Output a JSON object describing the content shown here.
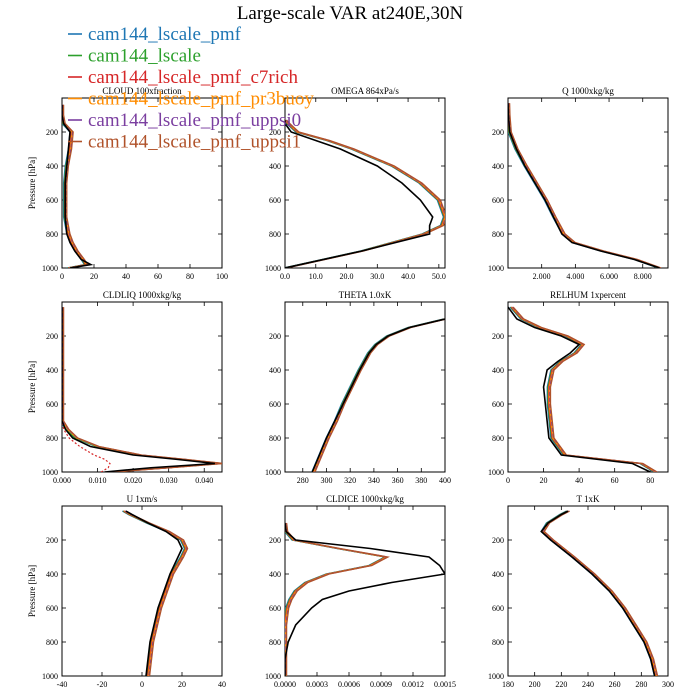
{
  "figure": {
    "title": "Large-scale VAR at240E,30N"
  },
  "legend": [
    {
      "name": "cam144_lscale_pmf",
      "color": "#1f77b4"
    },
    {
      "name": "cam144_lscale",
      "color": "#2ca02c"
    },
    {
      "name": "cam144_lscale_pmf_c7rich",
      "color": "#d62728"
    },
    {
      "name": "cam144_lscale_pmf_pr3buoy",
      "color": "#ff8c00"
    },
    {
      "name": "cam144_lscale_pmf_uppsi0",
      "color": "#7b3fa0"
    },
    {
      "name": "cam144_lscale_pmf_uppsi1",
      "color": "#b0522a"
    }
  ],
  "control_line_color": "#000000",
  "chart_data": [
    {
      "type": "line",
      "title": "CLOUD 100xfraction",
      "ylabel": "Pressure [hPa]",
      "xlim": [
        0,
        100
      ],
      "ylim": [
        1000,
        0
      ],
      "xticks": [
        "0",
        "20",
        "40",
        "60",
        "80",
        "100"
      ],
      "yticks": [
        "200",
        "400",
        "600",
        "800",
        "1000"
      ],
      "y": [
        40,
        100,
        150,
        200,
        300,
        400,
        500,
        600,
        700,
        800,
        850,
        900,
        950,
        980,
        1000
      ],
      "ctrl": [
        0,
        0,
        1,
        5,
        4,
        3,
        2,
        2,
        2,
        3,
        5,
        8,
        12,
        18,
        5
      ],
      "series": [
        0,
        0,
        1,
        6,
        5,
        3,
        2,
        2,
        2,
        4,
        6,
        9,
        13,
        15,
        4
      ]
    },
    {
      "type": "line",
      "title": "OMEGA 864xPa/s",
      "ylabel": "",
      "xlim": [
        0,
        52
      ],
      "ylim": [
        1000,
        0
      ],
      "xticks": [
        "0.0",
        "10.0",
        "20.0",
        "30.0",
        "40.0",
        "50.0"
      ],
      "yticks": [
        "200",
        "400",
        "600",
        "800",
        "1000"
      ],
      "y": [
        130,
        150,
        200,
        250,
        300,
        400,
        500,
        600,
        700,
        750,
        800,
        900,
        1000
      ],
      "ctrl": [
        0,
        0,
        2,
        10,
        18,
        30,
        38,
        44,
        48,
        47,
        47,
        25,
        0
      ],
      "series": [
        0,
        1,
        4,
        14,
        22,
        35,
        44,
        50,
        52,
        51,
        45,
        25,
        0
      ]
    },
    {
      "type": "line",
      "title": "Q 1000xkg/kg",
      "ylabel": "",
      "xlim": [
        0,
        9.5
      ],
      "ylim": [
        1000,
        0
      ],
      "xticks": [
        "2.000",
        "4.000",
        "6.000",
        "8.000"
      ],
      "yticks": [
        "200",
        "400",
        "600",
        "800",
        "1000"
      ],
      "y": [
        30,
        100,
        200,
        300,
        400,
        500,
        600,
        700,
        800,
        850,
        900,
        950,
        1000
      ],
      "ctrl": [
        0,
        0.02,
        0.1,
        0.5,
        1.0,
        1.6,
        2.2,
        2.7,
        3.2,
        3.8,
        5.5,
        7.5,
        9.0
      ],
      "series": [
        0,
        0.02,
        0.1,
        0.5,
        1.05,
        1.65,
        2.25,
        2.75,
        3.3,
        3.9,
        5.6,
        7.6,
        9.0
      ]
    },
    {
      "type": "line",
      "title": "CLDLIQ 1000xkg/kg",
      "ylabel": "Pressure [hPa]",
      "xlim": [
        0,
        0.045
      ],
      "ylim": [
        1000,
        0
      ],
      "xticks": [
        "0.000",
        "0.010",
        "0.020",
        "0.030",
        "0.040"
      ],
      "yticks": [
        "200",
        "400",
        "600",
        "800",
        "1000"
      ],
      "y": [
        30,
        200,
        400,
        600,
        700,
        750,
        800,
        850,
        900,
        925,
        950,
        975,
        1000
      ],
      "ctrl": [
        0,
        0,
        0,
        0,
        0,
        0.001,
        0.003,
        0.008,
        0.02,
        0.032,
        0.043,
        0.025,
        0.012
      ],
      "series": [
        0,
        0,
        0,
        0,
        0,
        0.0015,
        0.004,
        0.01,
        0.022,
        0.034,
        0.045,
        0.03,
        0.014
      ],
      "dashed": {
        "name_index": 2,
        "values": [
          0,
          0,
          0,
          0,
          0,
          0.0005,
          0.002,
          0.005,
          0.009,
          0.012,
          0.0135,
          0.013,
          0.011
        ]
      }
    },
    {
      "type": "line",
      "title": "THETA 1.0xK",
      "ylabel": "",
      "xlim": [
        265,
        400
      ],
      "ylim": [
        1000,
        0
      ],
      "xticks": [
        "280",
        "300",
        "320",
        "340",
        "360",
        "380",
        "400"
      ],
      "yticks": [
        "200",
        "400",
        "600",
        "800",
        "1000"
      ],
      "y": [
        100,
        150,
        200,
        250,
        300,
        400,
        500,
        600,
        700,
        800,
        900,
        1000
      ],
      "ctrl": [
        400,
        370,
        352,
        342,
        336,
        328,
        321,
        314,
        307,
        300,
        294,
        288
      ],
      "series": [
        400,
        370,
        352,
        342,
        336,
        328,
        321,
        314,
        308,
        301,
        295,
        289
      ]
    },
    {
      "type": "line",
      "title": "RELHUM 1xpercent",
      "ylabel": "",
      "xlim": [
        0,
        90
      ],
      "ylim": [
        1000,
        0
      ],
      "xticks": [
        "0",
        "20",
        "40",
        "60",
        "80"
      ],
      "yticks": [
        "200",
        "400",
        "600",
        "800",
        "1000"
      ],
      "y": [
        30,
        100,
        150,
        200,
        250,
        300,
        350,
        400,
        500,
        600,
        700,
        800,
        900,
        950,
        1000
      ],
      "ctrl": [
        0,
        5,
        15,
        30,
        40,
        35,
        28,
        22,
        20,
        21,
        22,
        23,
        30,
        70,
        80
      ],
      "series": [
        2,
        8,
        18,
        33,
        42,
        38,
        30,
        25,
        23,
        23,
        24,
        25,
        32,
        75,
        83
      ]
    },
    {
      "type": "line",
      "title": "U 1xm/s",
      "ylabel": "Pressure [hPa]",
      "xlim": [
        -40,
        40
      ],
      "ylim": [
        1000,
        0
      ],
      "xticks": [
        "-40",
        "-20",
        "0",
        "20",
        "40"
      ],
      "yticks": [
        "200",
        "400",
        "600",
        "800",
        "1000"
      ],
      "y": [
        30,
        50,
        100,
        150,
        200,
        250,
        300,
        400,
        500,
        600,
        700,
        800,
        900,
        1000
      ],
      "ctrl": [
        -8,
        -5,
        3,
        12,
        18,
        20,
        18,
        14,
        11,
        8,
        6,
        4,
        3,
        2
      ],
      "series": [
        -9,
        -6,
        3,
        13,
        20,
        22,
        20,
        15,
        12,
        9,
        7,
        5,
        4,
        3
      ]
    },
    {
      "type": "line",
      "title": "CLDICE 1000xkg/kg",
      "ylabel": "",
      "xlim": [
        0,
        0.0015
      ],
      "ylim": [
        1000,
        0
      ],
      "xticks": [
        "0.0000",
        "0.0003",
        "0.0006",
        "0.0009",
        "0.0012",
        "0.0015"
      ],
      "yticks": [
        "200",
        "400",
        "600",
        "800",
        "1000"
      ],
      "y": [
        100,
        150,
        200,
        250,
        300,
        350,
        400,
        450,
        500,
        550,
        600,
        700,
        800,
        900,
        1000
      ],
      "ctrl": [
        0,
        1e-05,
        0.0001,
        0.0008,
        0.00135,
        0.00145,
        0.0015,
        0.001,
        0.0006,
        0.00035,
        0.00025,
        0.0001,
        3e-05,
        0,
        0
      ],
      "series": [
        0,
        1e-05,
        8e-05,
        0.0005,
        0.00095,
        0.0008,
        0.0004,
        0.0002,
        0.0001,
        5e-05,
        2e-05,
        0,
        0,
        0,
        0
      ]
    },
    {
      "type": "line",
      "title": "T 1xK",
      "ylabel": "",
      "xlim": [
        180,
        300
      ],
      "ylim": [
        1000,
        0
      ],
      "xticks": [
        "180",
        "200",
        "220",
        "240",
        "260",
        "280",
        "300"
      ],
      "yticks": [
        "200",
        "400",
        "600",
        "800",
        "1000"
      ],
      "y": [
        30,
        50,
        100,
        150,
        200,
        300,
        400,
        500,
        600,
        700,
        800,
        900,
        1000
      ],
      "ctrl": [
        225,
        220,
        210,
        205,
        212,
        228,
        243,
        256,
        266,
        274,
        282,
        287,
        290
      ],
      "series": [
        225,
        220,
        210,
        206,
        213,
        229,
        244,
        257,
        267,
        275,
        283,
        288,
        291
      ]
    }
  ]
}
